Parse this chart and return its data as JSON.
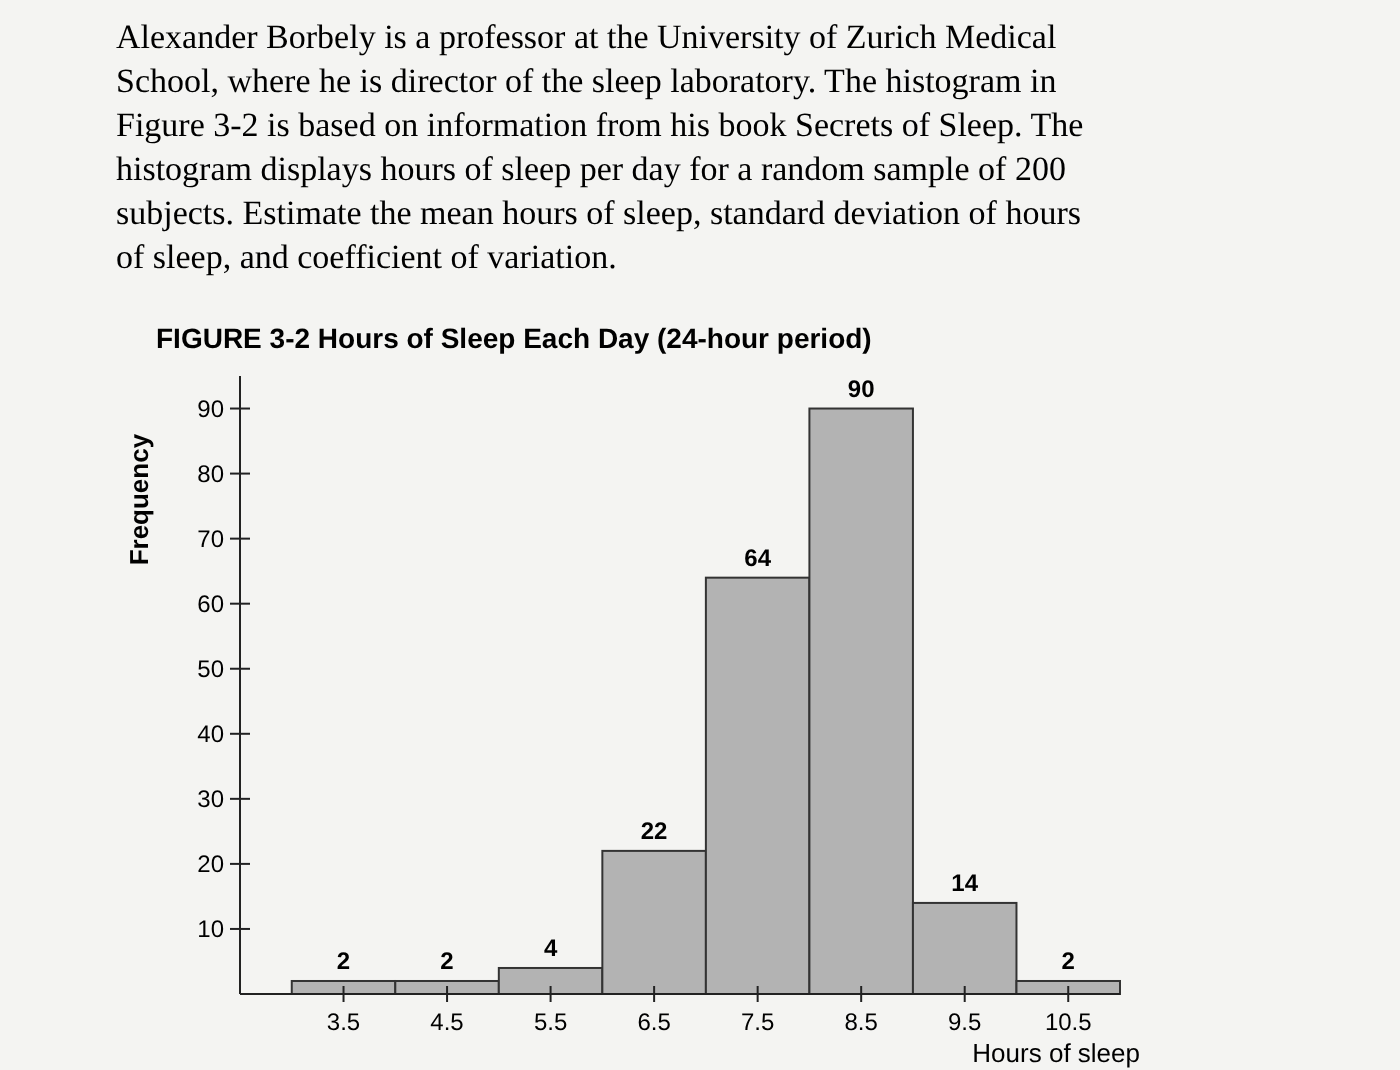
{
  "chart_data": {
    "type": "histogram",
    "title": "FIGURE 3-2   Hours of Sleep Each Day (24-hour period)",
    "annotations": [
      "Alexander Borbely is a professor at the University of Zurich Medical School, where he is director of the sleep laboratory. The histogram in Figure 3-2 is based on information from his book Secrets of Sleep. The histogram displays hours of sleep per day for a random sample of 200 subjects. Estimate the mean hours of sleep, standard deviation of hours of sleep, and coefficient of variation."
    ],
    "xlabel": "Hours of sleep",
    "ylabel": "Frequency",
    "bins": [
      3,
      4,
      5,
      6,
      7,
      8,
      9,
      10,
      11
    ],
    "values": [
      2,
      2,
      4,
      22,
      64,
      90,
      14,
      2
    ],
    "color": "#b3b3b3",
    "xlim": [
      2.5,
      11
    ],
    "xticks": [
      3.5,
      4.5,
      5.5,
      6.5,
      7.5,
      8.5,
      9.5,
      10.5
    ],
    "ylim": [
      0,
      95
    ],
    "yticks": [
      10,
      20,
      30,
      40,
      50,
      60,
      70,
      80,
      90
    ],
    "data_labels": true,
    "grid": false
  }
}
